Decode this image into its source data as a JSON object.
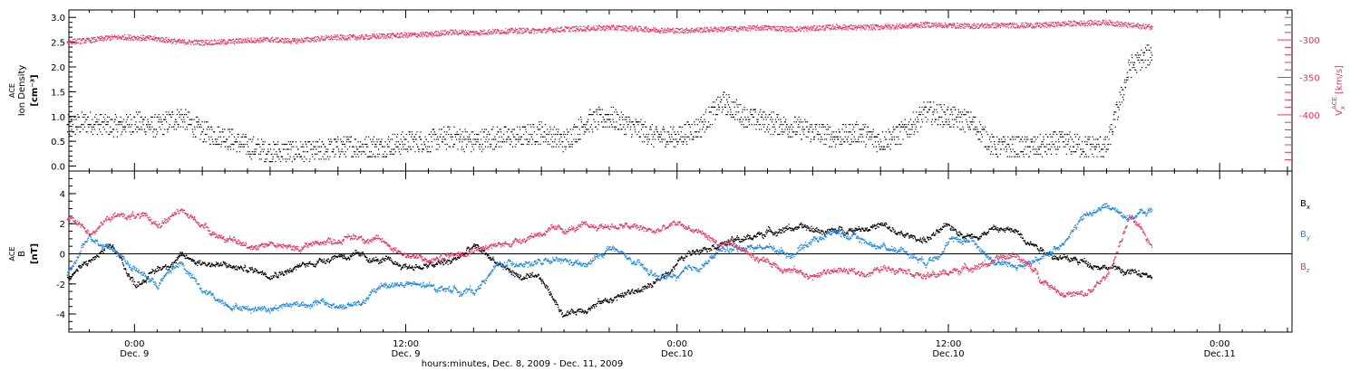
{
  "chart_data": [
    {
      "type": "scatter",
      "panel": "top",
      "ylabel": "Ion Density",
      "ylabel_super": "ACE",
      "yunit": "[cm⁻³]",
      "ylim": [
        -0.1,
        3.15
      ],
      "yticks": [
        0.0,
        0.5,
        1.0,
        1.5,
        2.0,
        2.5,
        3.0
      ],
      "y2label": "V",
      "y2label_sub": "x",
      "y2label_super": "ACE",
      "y2unit": "[km/s]",
      "y2lim": [
        -475,
        -260
      ],
      "y2ticks": [
        -300,
        -350,
        -400
      ],
      "series": [
        {
          "name": "Ion Density",
          "color": "#000000",
          "x_hours": [
            -3,
            -2,
            -1,
            0,
            1,
            2,
            3,
            4,
            5,
            6,
            7,
            8,
            9,
            10,
            11,
            12,
            13,
            14,
            15,
            16,
            17,
            18,
            19,
            20,
            21,
            22,
            23,
            24,
            25,
            26,
            27,
            28,
            29,
            30,
            31,
            32,
            33,
            34,
            35,
            36,
            37,
            38,
            39,
            40,
            41,
            42,
            43,
            44,
            45
          ],
          "values": [
            0.8,
            0.9,
            0.8,
            0.9,
            0.8,
            1.0,
            0.7,
            0.6,
            0.4,
            0.3,
            0.3,
            0.3,
            0.4,
            0.4,
            0.4,
            0.5,
            0.5,
            0.6,
            0.5,
            0.6,
            0.6,
            0.7,
            0.5,
            0.9,
            1.0,
            0.8,
            0.6,
            0.6,
            0.8,
            1.3,
            1.0,
            0.9,
            0.8,
            0.7,
            0.6,
            0.7,
            0.5,
            0.7,
            1.1,
            1.0,
            0.9,
            0.4,
            0.4,
            0.4,
            0.5,
            0.4,
            0.4,
            2.0,
            2.3
          ]
        },
        {
          "name": "Vx",
          "color": "#e8325e",
          "x_hours": [
            -3,
            -2,
            -1,
            0,
            1,
            2,
            3,
            4,
            5,
            6,
            7,
            8,
            9,
            10,
            11,
            12,
            13,
            14,
            15,
            16,
            17,
            18,
            19,
            20,
            21,
            22,
            23,
            24,
            25,
            26,
            27,
            28,
            29,
            30,
            31,
            32,
            33,
            34,
            35,
            36,
            37,
            38,
            39,
            40,
            41,
            42,
            43,
            44,
            45
          ],
          "values": [
            -302,
            -300,
            -296,
            -296,
            -298,
            -302,
            -303,
            -302,
            -300,
            -299,
            -301,
            -298,
            -296,
            -296,
            -294,
            -293,
            -292,
            -289,
            -290,
            -288,
            -287,
            -287,
            -285,
            -284,
            -283,
            -284,
            -286,
            -287,
            -286,
            -285,
            -284,
            -283,
            -285,
            -284,
            -282,
            -283,
            -282,
            -281,
            -279,
            -280,
            -281,
            -280,
            -280,
            -280,
            -278,
            -277,
            -276,
            -280,
            -282
          ]
        }
      ]
    },
    {
      "type": "scatter",
      "panel": "bottom",
      "ylabel": "B",
      "ylabel_super": "ACE",
      "yunit": "[nT]",
      "ylim": [
        -5.2,
        5.5
      ],
      "yticks": [
        -4,
        -2,
        0,
        2,
        4
      ],
      "zero_line": true,
      "series": [
        {
          "name": "Bx",
          "legend_main": "B",
          "legend_sub": "x",
          "color": "#000000",
          "x_hours": [
            -3,
            -2,
            -1,
            0,
            1,
            2,
            3,
            4,
            5,
            6,
            7,
            8,
            9,
            10,
            11,
            12,
            13,
            14,
            15,
            16,
            17,
            18,
            19,
            20,
            21,
            22,
            23,
            24,
            25,
            26,
            27,
            28,
            29,
            30,
            31,
            32,
            33,
            34,
            35,
            36,
            37,
            38,
            39,
            40,
            41,
            42,
            43,
            44,
            45
          ],
          "values": [
            -1.5,
            -0.5,
            0.5,
            -2.0,
            -1.0,
            -0.2,
            -0.5,
            -0.8,
            -1.0,
            -1.2,
            -1.0,
            -0.5,
            0.0,
            -0.2,
            -0.5,
            -0.8,
            -0.8,
            -0.5,
            0.5,
            -0.5,
            -1.5,
            -1.8,
            -4.0,
            -3.5,
            -3.0,
            -2.5,
            -2.0,
            -0.5,
            0.5,
            0.8,
            1.0,
            1.5,
            1.8,
            1.6,
            1.5,
            1.8,
            1.9,
            1.2,
            1.0,
            1.8,
            1.2,
            1.7,
            1.5,
            0.5,
            -0.3,
            -0.5,
            -0.8,
            -1.2,
            -1.5
          ]
        },
        {
          "name": "By",
          "legend_main": "B",
          "legend_sub": "y",
          "color": "#1b86e0",
          "x_hours": [
            -3,
            -2,
            -1,
            0,
            1,
            2,
            3,
            4,
            5,
            6,
            7,
            8,
            9,
            10,
            11,
            12,
            13,
            14,
            15,
            16,
            17,
            18,
            19,
            20,
            21,
            22,
            23,
            24,
            25,
            26,
            27,
            28,
            29,
            30,
            31,
            32,
            33,
            34,
            35,
            36,
            37,
            38,
            39,
            40,
            41,
            42,
            43,
            44,
            45
          ],
          "values": [
            -1.5,
            1.2,
            0.5,
            -1.0,
            -2.0,
            -0.5,
            -2.5,
            -3.2,
            -3.6,
            -3.5,
            -3.3,
            -3.2,
            -3.5,
            -3.3,
            -2.0,
            -2.0,
            -2.2,
            -2.3,
            -2.5,
            -0.8,
            -0.5,
            -0.6,
            -0.5,
            -0.8,
            0.5,
            -0.5,
            -1.5,
            -1.5,
            -0.8,
            0.3,
            0.5,
            0.5,
            0.0,
            1.0,
            1.5,
            1.0,
            0.5,
            0.3,
            -0.5,
            0.8,
            1.0,
            -0.5,
            -0.8,
            -0.5,
            0.8,
            2.5,
            3.2,
            2.5,
            2.9
          ]
        },
        {
          "name": "Bz",
          "legend_main": "B",
          "legend_sub": "z",
          "color": "#e8325e",
          "x_hours": [
            -3,
            -2,
            -1,
            0,
            1,
            2,
            3,
            4,
            5,
            6,
            7,
            8,
            9,
            10,
            11,
            12,
            13,
            14,
            15,
            16,
            17,
            18,
            19,
            20,
            21,
            22,
            23,
            24,
            25,
            26,
            27,
            28,
            29,
            30,
            31,
            32,
            33,
            34,
            35,
            36,
            37,
            38,
            39,
            40,
            41,
            42,
            43,
            44,
            45
          ],
          "values": [
            2.5,
            1.5,
            2.5,
            2.6,
            2.0,
            2.8,
            2.0,
            1.0,
            0.5,
            0.8,
            0.3,
            0.8,
            1.0,
            1.2,
            0.8,
            0.0,
            -0.5,
            0.0,
            0.5,
            0.5,
            1.0,
            1.5,
            1.6,
            1.8,
            1.9,
            1.8,
            1.5,
            2.0,
            1.5,
            0.5,
            0.2,
            -0.5,
            -1.0,
            -1.5,
            -1.0,
            -1.3,
            -1.0,
            -0.8,
            -1.5,
            -1.2,
            -0.8,
            -0.5,
            0.0,
            -1.5,
            -2.5,
            -2.8,
            -1.5,
            2.5,
            0.5
          ]
        }
      ]
    }
  ],
  "time_axis": {
    "ticks": [
      {
        "hours": 0,
        "time": "0:00",
        "date": "Dec. 9"
      },
      {
        "hours": 12,
        "time": "12:00",
        "date": "Dec. 9"
      },
      {
        "hours": 24,
        "time": "0:00",
        "date": "Dec.10"
      },
      {
        "hours": 36,
        "time": "12:00",
        "date": "Dec.10"
      },
      {
        "hours": 48,
        "time": "0:00",
        "date": "Dec.11"
      }
    ],
    "xlim_hours": [
      -2.9,
      51.2
    ],
    "xlabel": "hours:minutes, Dec. 8, 2009 - Dec. 11, 2009"
  }
}
